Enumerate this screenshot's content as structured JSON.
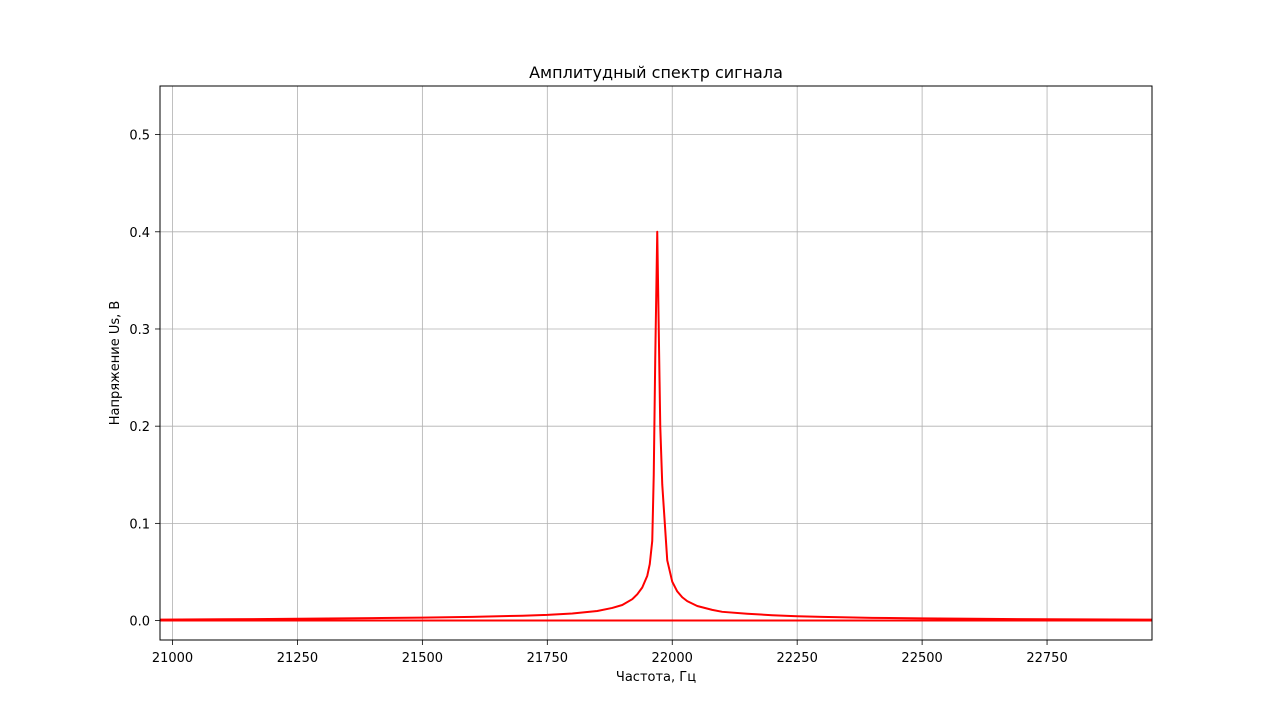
{
  "chart_data": {
    "type": "line",
    "title": "Амплитудный спектр сигнала",
    "xlabel": "Частота, Гц",
    "ylabel": "Напряжение Us, В",
    "xlim": [
      20975,
      22960
    ],
    "ylim": [
      -0.02,
      0.55
    ],
    "xticks": [
      21000,
      21250,
      21500,
      21750,
      22000,
      22250,
      22500,
      22750
    ],
    "yticks": [
      0.0,
      0.1,
      0.2,
      0.3,
      0.4,
      0.5
    ],
    "ytick_labels": [
      "0.0",
      "0.1",
      "0.2",
      "0.3",
      "0.4",
      "0.5"
    ],
    "grid": true,
    "series": [
      {
        "color": "#ff0000",
        "x": [
          20975,
          21100,
          21250,
          21400,
          21500,
          21600,
          21700,
          21750,
          21800,
          21850,
          21880,
          21900,
          21920,
          21930,
          21940,
          21950,
          21955,
          21960,
          21963,
          21966,
          21970,
          21973,
          21976,
          21980,
          21990,
          22000,
          22010,
          22020,
          22030,
          22050,
          22080,
          22100,
          22150,
          22200,
          22250,
          22300,
          22400,
          22500,
          22600,
          22750,
          22960
        ],
        "y": [
          0.001,
          0.0013,
          0.0018,
          0.0025,
          0.003,
          0.0038,
          0.005,
          0.0058,
          0.0073,
          0.0098,
          0.013,
          0.016,
          0.022,
          0.027,
          0.034,
          0.046,
          0.058,
          0.082,
          0.15,
          0.27,
          0.4,
          0.3,
          0.2,
          0.14,
          0.062,
          0.04,
          0.03,
          0.024,
          0.02,
          0.015,
          0.011,
          0.009,
          0.007,
          0.0055,
          0.0045,
          0.0038,
          0.0028,
          0.0022,
          0.0018,
          0.0013,
          0.001
        ]
      },
      {
        "color": "#ff0000",
        "x": [
          20975,
          22960
        ],
        "y": [
          0.0,
          0.0
        ]
      }
    ]
  }
}
